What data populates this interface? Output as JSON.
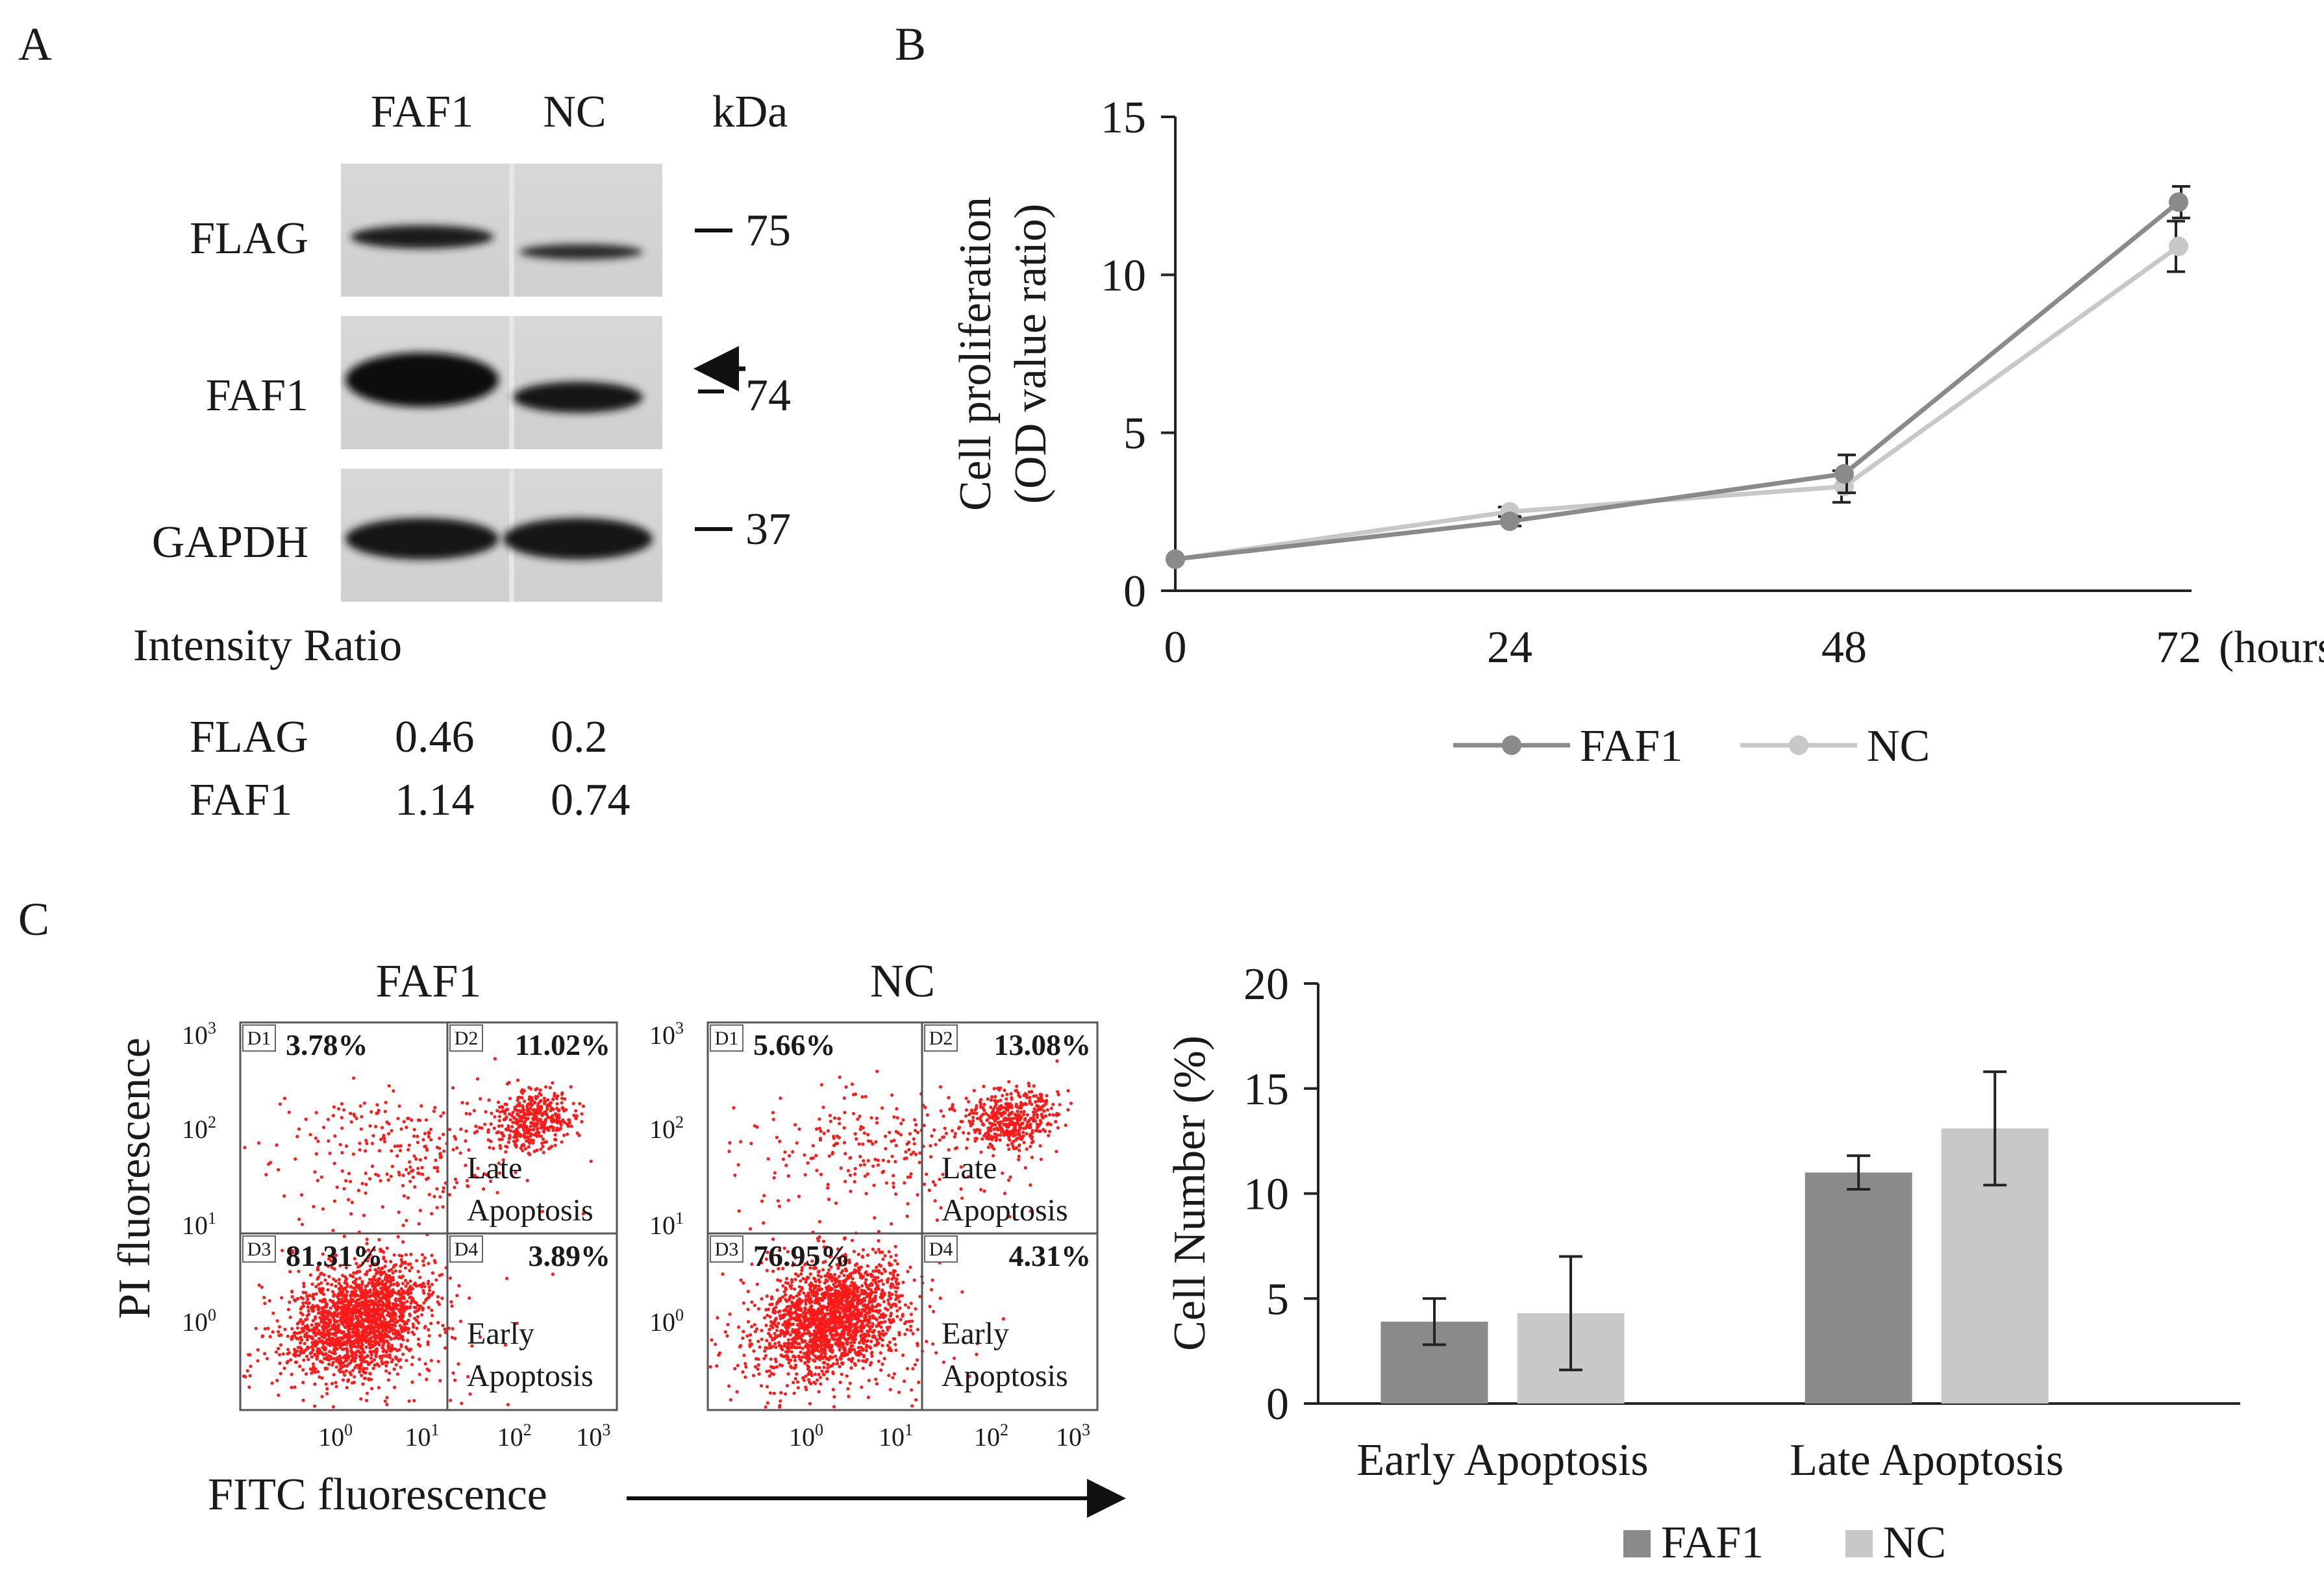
{
  "panels": {
    "a": {
      "letter": "A",
      "lanes": [
        "FAF1",
        "NC"
      ],
      "mw_unit": "kDa",
      "blots": [
        {
          "label": "FLAG",
          "marker": "75"
        },
        {
          "label": "FAF1",
          "marker": "74"
        },
        {
          "label": "GAPDH",
          "marker": "37"
        }
      ],
      "intensity": {
        "title": "Intensity Ratio",
        "rows": [
          {
            "label": "FLAG",
            "faf1": "0.46",
            "nc": "0.2"
          },
          {
            "label": "FAF1",
            "faf1": "1.14",
            "nc": "0.74"
          }
        ]
      }
    },
    "b": {
      "letter": "B"
    },
    "c": {
      "letter": "C",
      "flow": {
        "y_label": "PI fluorescence",
        "x_label": "FITC fluorescence",
        "plots": [
          {
            "title": "FAF1",
            "D1": "3.78%",
            "D2": "11.02%",
            "D3": "81.31%",
            "D4": "3.89%"
          },
          {
            "title": "NC",
            "D1": "5.66%",
            "D2": "13.08%",
            "D3": "76.95%",
            "D4": "4.31%"
          }
        ],
        "gate_names": [
          "D1",
          "D2",
          "D3",
          "D4"
        ],
        "quadrant_labels": {
          "late": [
            "Late",
            "Apoptosis"
          ],
          "early": [
            "Early",
            "Apoptosis"
          ]
        },
        "decades": [
          "0",
          "1",
          "2",
          "3"
        ]
      }
    }
  },
  "colors": {
    "faf1": "#8a8a8a",
    "nc": "#c8c8c8",
    "dots": "#ff1a1a"
  },
  "chart_data": [
    {
      "type": "line",
      "title": "",
      "xlabel": "(hours)",
      "ylabel": [
        "Cell proliferation",
        "(OD value ratio)"
      ],
      "x": [
        0,
        24,
        48,
        72
      ],
      "x_ticks": [
        "0",
        "24",
        "48",
        "72"
      ],
      "ylim": [
        0,
        15
      ],
      "y_ticks": [
        0,
        5,
        10,
        15
      ],
      "series": [
        {
          "name": "FAF1",
          "values": [
            1.0,
            2.2,
            3.7,
            12.3
          ],
          "errors": [
            0,
            0.15,
            0.6,
            0.5
          ]
        },
        {
          "name": "NC",
          "values": [
            1.0,
            2.5,
            3.3,
            10.9
          ],
          "errors": [
            0,
            0.15,
            0.5,
            0.8
          ]
        }
      ],
      "legend": "bottom"
    },
    {
      "type": "bar",
      "title": "",
      "xlabel": "",
      "ylabel": "Cell Number (%)",
      "categories": [
        "Early Apoptosis",
        "Late Apoptosis"
      ],
      "ylim": [
        0,
        20
      ],
      "y_ticks": [
        0,
        5,
        10,
        15,
        20
      ],
      "series": [
        {
          "name": "FAF1",
          "values": [
            3.9,
            11.0
          ],
          "errors": [
            1.1,
            0.8
          ]
        },
        {
          "name": "NC",
          "values": [
            4.3,
            13.1
          ],
          "errors": [
            2.7,
            2.7
          ]
        }
      ],
      "legend": "bottom"
    }
  ]
}
